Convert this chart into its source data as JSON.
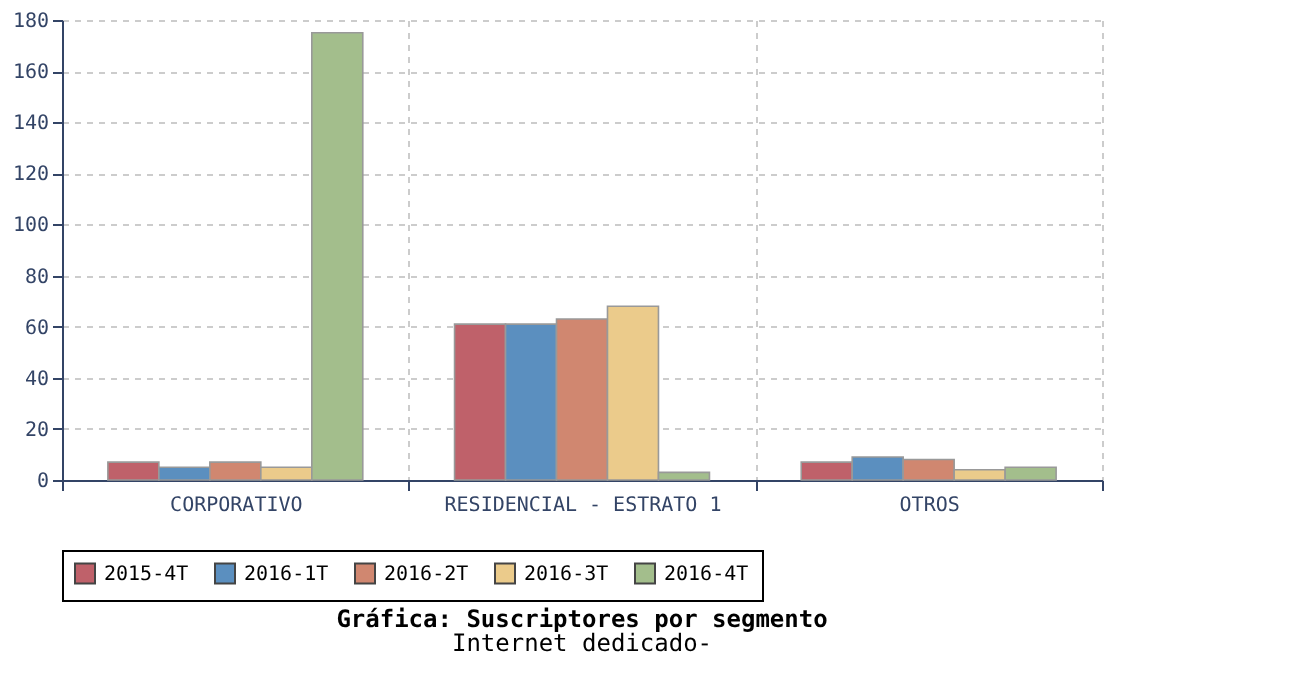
{
  "chart_data": {
    "type": "bar",
    "title": "Gráfica: Suscriptores por segmento",
    "subtitle": "Internet dedicado-",
    "categories": [
      "CORPORATIVO",
      "RESIDENCIAL - ESTRATO 1",
      "OTROS"
    ],
    "series": [
      {
        "name": "2015-4T",
        "color": "#bf616a",
        "values": [
          7,
          61,
          7
        ]
      },
      {
        "name": "2016-1T",
        "color": "#5b8fbf",
        "values": [
          5,
          61,
          9
        ]
      },
      {
        "name": "2016-2T",
        "color": "#d08770",
        "values": [
          7,
          63,
          8
        ]
      },
      {
        "name": "2016-3T",
        "color": "#ebcb8b",
        "values": [
          5,
          68,
          4
        ]
      },
      {
        "name": "2016-4T",
        "color": "#a3be8c",
        "values": [
          175,
          3,
          5
        ]
      }
    ],
    "ylim": [
      0,
      180
    ],
    "yticks": [
      0,
      20,
      40,
      60,
      80,
      100,
      120,
      140,
      160,
      180
    ],
    "grid": true,
    "legend": "bottom"
  }
}
